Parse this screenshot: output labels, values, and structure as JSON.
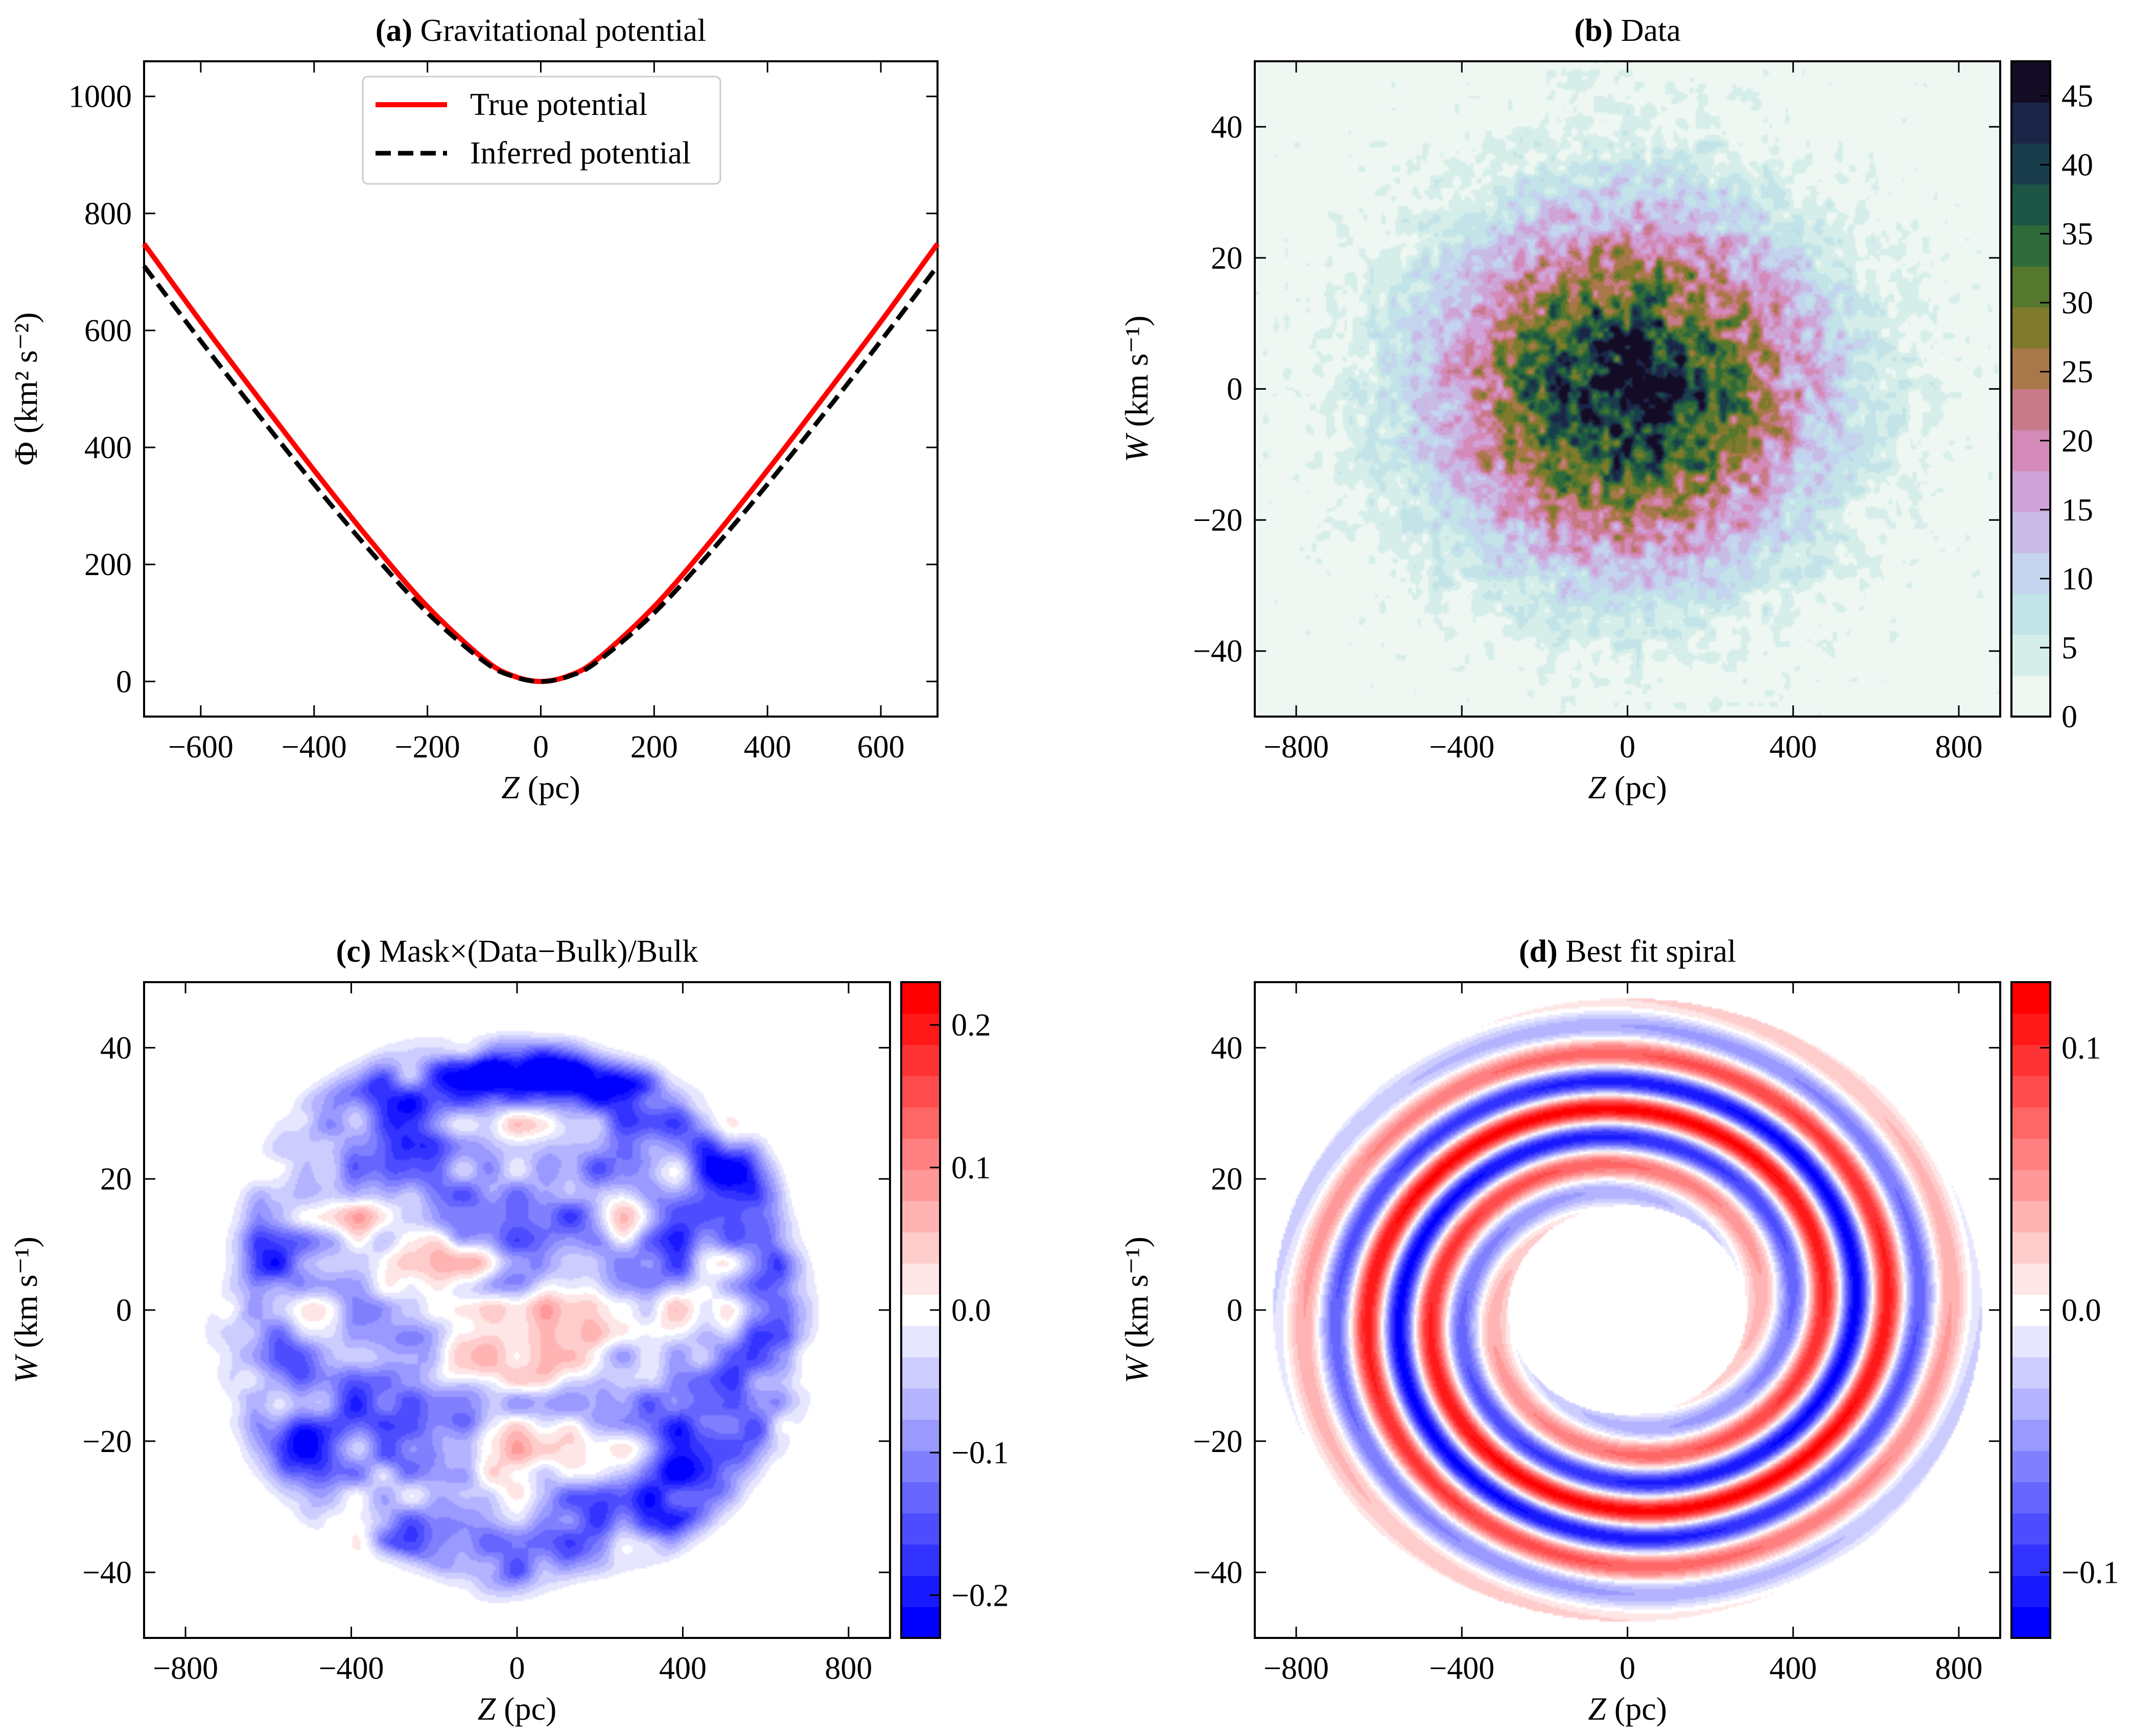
{
  "chart_data": [
    {
      "panel": "a",
      "type": "line",
      "title_bold": "(a)",
      "title": "Gravitational potential",
      "xlabel_italic": "Z",
      "xlabel_rest": " (pc)",
      "ylabel": "Φ (km² s⁻²)",
      "xlim": [
        -700,
        700
      ],
      "ylim": [
        -60,
        1060
      ],
      "xticks": [
        -600,
        -400,
        -200,
        0,
        200,
        400,
        600
      ],
      "yticks": [
        0,
        200,
        400,
        600,
        800,
        1000
      ],
      "xtick_labels": [
        "−600",
        "−400",
        "−200",
        "0",
        "200",
        "400",
        "600"
      ],
      "ytick_labels": [
        "0",
        "200",
        "400",
        "600",
        "800",
        "1000"
      ],
      "legend_position": "upper center",
      "series": [
        {
          "name": "True potential",
          "color": "#ff0000",
          "style": "solid",
          "x": [
            -700,
            -600,
            -500,
            -400,
            -300,
            -200,
            -100,
            -50,
            0,
            50,
            100,
            200,
            300,
            400,
            500,
            600,
            700
          ],
          "y": [
            748,
            615,
            487,
            361,
            240,
            128,
            38,
            10,
            0,
            10,
            38,
            128,
            240,
            361,
            487,
            615,
            748
          ]
        },
        {
          "name": "Inferred potential",
          "color": "#000000",
          "style": "dashed",
          "x": [
            -700,
            -600,
            -500,
            -400,
            -300,
            -200,
            -100,
            -50,
            0,
            50,
            100,
            200,
            300,
            400,
            500,
            600,
            700
          ],
          "y": [
            710,
            582,
            458,
            337,
            222,
            117,
            34,
            9,
            0,
            9,
            34,
            117,
            222,
            337,
            458,
            582,
            710
          ]
        }
      ]
    },
    {
      "panel": "b",
      "type": "heatmap",
      "title_bold": "(b)",
      "title": "Data",
      "xlabel_italic": "Z",
      "xlabel_rest": " (pc)",
      "ylabel_italic": "W",
      "ylabel_rest": " (km s⁻¹)",
      "xlim": [
        -900,
        900
      ],
      "ylim": [
        -50,
        50
      ],
      "xticks": [
        -800,
        -400,
        0,
        400,
        800
      ],
      "yticks": [
        -40,
        -20,
        0,
        20,
        40
      ],
      "xtick_labels": [
        "−800",
        "−400",
        "0",
        "400",
        "800"
      ],
      "ytick_labels": [
        "−40",
        "−20",
        "0",
        "20",
        "40"
      ],
      "colorbar_range": [
        0,
        47.5
      ],
      "colorbar_ticks": [
        0,
        5,
        10,
        15,
        20,
        25,
        30,
        35,
        40,
        45
      ],
      "colorbar_tick_labels": [
        "0",
        "5",
        "10",
        "15",
        "20",
        "25",
        "30",
        "35",
        "40",
        "45"
      ],
      "colors": [
        "#eef7f2",
        "#d6eeea",
        "#c2e4e8",
        "#c4d4ee",
        "#c8bce6",
        "#cfa3d8",
        "#d48ab8",
        "#c97a8a",
        "#a9784a",
        "#7f7a2c",
        "#55772e",
        "#2f6a3a",
        "#1d5644",
        "#1a3d4c",
        "#1c2547",
        "#140c24"
      ],
      "distribution": {
        "model": "gaussian",
        "peak": 45,
        "sigma_z": 300,
        "sigma_w": 17.5
      }
    },
    {
      "panel": "c",
      "type": "heatmap",
      "title_bold": "(c)",
      "title": "Mask×(Data−Bulk)/Bulk",
      "xlabel_italic": "Z",
      "xlabel_rest": " (pc)",
      "ylabel_italic": "W",
      "ylabel_rest": " (km s⁻¹)",
      "xlim": [
        -900,
        900
      ],
      "ylim": [
        -50,
        50
      ],
      "xticks": [
        -800,
        -400,
        0,
        400,
        800
      ],
      "yticks": [
        -40,
        -20,
        0,
        20,
        40
      ],
      "xtick_labels": [
        "−800",
        "−400",
        "0",
        "400",
        "800"
      ],
      "ytick_labels": [
        "−40",
        "−20",
        "0",
        "20",
        "40"
      ],
      "colorbar_range": [
        -0.23,
        0.23
      ],
      "colorbar_ticks": [
        -0.2,
        -0.1,
        0.0,
        0.1,
        0.2
      ],
      "colorbar_tick_labels": [
        "−0.2",
        "−0.1",
        "0.0",
        "0.1",
        "0.2"
      ],
      "colormap": "bwr",
      "distribution": {
        "model": "noisy residual ring",
        "ring_radius": 0.78,
        "mask_radius": 1.1
      }
    },
    {
      "panel": "d",
      "type": "heatmap",
      "title_bold": "(d)",
      "title": "Best fit spiral",
      "xlabel_italic": "Z",
      "xlabel_rest": " (pc)",
      "ylabel_italic": "W",
      "ylabel_rest": " (km s⁻¹)",
      "xlim": [
        -900,
        900
      ],
      "ylim": [
        -50,
        50
      ],
      "xticks": [
        -800,
        -400,
        0,
        400,
        800
      ],
      "yticks": [
        -40,
        -20,
        0,
        20,
        40
      ],
      "xtick_labels": [
        "−800",
        "−400",
        "0",
        "400",
        "800"
      ],
      "ytick_labels": [
        "−40",
        "−20",
        "0",
        "20",
        "40"
      ],
      "colorbar_range": [
        -0.125,
        0.125
      ],
      "colorbar_ticks": [
        -0.1,
        0.0,
        0.1
      ],
      "colorbar_tick_labels": [
        "−0.1",
        "0.0",
        "0.1"
      ],
      "colormap": "bwr",
      "distribution": {
        "model": "two-armed phase spiral",
        "amplitude": 0.125
      }
    }
  ]
}
